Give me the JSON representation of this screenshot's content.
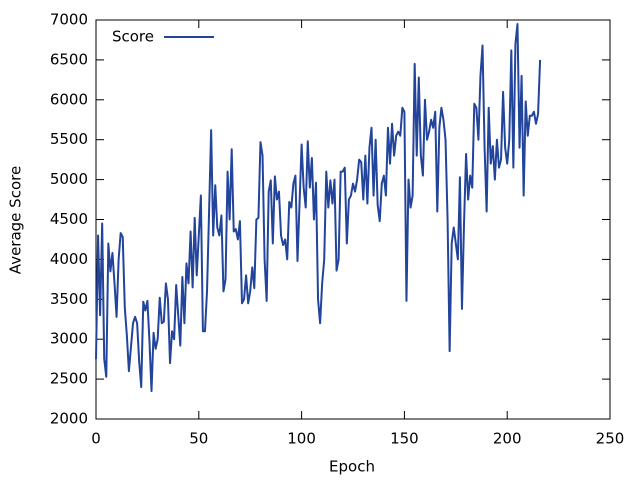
{
  "chart_data": {
    "type": "line",
    "x_label": "Epoch",
    "y_label": "Average Score",
    "xlim": [
      0,
      250
    ],
    "xticks": [
      0,
      50,
      100,
      150,
      200,
      250
    ],
    "ylim": [
      2000,
      7000
    ],
    "yticks": [
      2000,
      2500,
      3000,
      3500,
      4000,
      4500,
      5000,
      5500,
      6000,
      6500,
      7000
    ],
    "legend": "top-left",
    "series": [
      {
        "name": "Score",
        "color": "#22449a",
        "x": [
          0,
          1,
          2,
          3,
          4,
          5,
          6,
          7,
          8,
          9,
          10,
          11,
          12,
          13,
          14,
          15,
          16,
          17,
          18,
          19,
          20,
          21,
          22,
          23,
          24,
          25,
          26,
          27,
          28,
          29,
          30,
          31,
          32,
          33,
          34,
          35,
          36,
          37,
          38,
          39,
          40,
          41,
          42,
          43,
          44,
          45,
          46,
          47,
          48,
          49,
          50,
          51,
          52,
          53,
          54,
          55,
          56,
          57,
          58,
          59,
          60,
          61,
          62,
          63,
          64,
          65,
          66,
          67,
          68,
          69,
          70,
          71,
          72,
          73,
          74,
          75,
          76,
          77,
          78,
          79,
          80,
          81,
          82,
          83,
          84,
          85,
          86,
          87,
          88,
          89,
          90,
          91,
          92,
          93,
          94,
          95,
          96,
          97,
          98,
          99,
          100,
          101,
          102,
          103,
          104,
          105,
          106,
          107,
          108,
          109,
          110,
          111,
          112,
          113,
          114,
          115,
          116,
          117,
          118,
          119,
          120,
          121,
          122,
          123,
          124,
          125,
          126,
          127,
          128,
          129,
          130,
          131,
          132,
          133,
          134,
          135,
          136,
          137,
          138,
          139,
          140,
          141,
          142,
          143,
          144,
          145,
          146,
          147,
          148,
          149,
          150,
          151,
          152,
          153,
          154,
          155,
          156,
          157,
          158,
          159,
          160,
          161,
          162,
          163,
          164,
          165,
          166,
          167,
          168,
          169,
          170,
          171,
          172,
          173,
          174,
          175,
          176,
          177,
          178,
          179,
          180,
          181,
          182,
          183,
          184,
          185,
          186,
          187,
          188,
          189,
          190,
          191,
          192,
          193,
          194,
          195,
          196,
          197,
          198,
          199,
          200,
          201,
          202,
          203,
          204,
          205,
          206,
          207,
          208,
          209,
          210,
          211,
          212,
          213,
          214,
          215,
          216
        ],
        "values": [
          2750,
          4300,
          3300,
          4450,
          2750,
          2530,
          4200,
          3850,
          4080,
          3700,
          3280,
          4000,
          4330,
          4280,
          3400,
          3050,
          2600,
          2900,
          3200,
          3280,
          3200,
          2720,
          2400,
          3470,
          3360,
          3480,
          2980,
          2350,
          3080,
          2880,
          3000,
          3520,
          3200,
          3220,
          3700,
          3500,
          2700,
          3100,
          3000,
          3680,
          3300,
          2920,
          3780,
          3200,
          3950,
          3700,
          4350,
          3650,
          4520,
          3800,
          4300,
          4800,
          3100,
          3100,
          3600,
          4600,
          5620,
          4300,
          4930,
          4400,
          4300,
          4550,
          3600,
          3750,
          5100,
          4500,
          5380,
          4350,
          4380,
          4250,
          4480,
          3450,
          3500,
          3800,
          3450,
          3600,
          3900,
          3640,
          4500,
          4520,
          5470,
          5300,
          4000,
          3480,
          4850,
          4990,
          4200,
          5040,
          4750,
          4850,
          4300,
          4180,
          4250,
          4000,
          4720,
          4650,
          4950,
          5050,
          3980,
          4700,
          5440,
          4900,
          4650,
          5480,
          4900,
          5270,
          4500,
          4960,
          3500,
          3200,
          3700,
          4000,
          5100,
          4650,
          4990,
          4700,
          5000,
          3860,
          4000,
          5100,
          5100,
          5150,
          4200,
          4750,
          4800,
          4950,
          4850,
          5000,
          5250,
          5220,
          4750,
          5300,
          4700,
          5400,
          5650,
          4800,
          5500,
          4680,
          4480,
          4950,
          5050,
          4800,
          5650,
          5200,
          5700,
          5300,
          5550,
          5600,
          5550,
          5900,
          5850,
          3480,
          5000,
          4650,
          4800,
          6450,
          5300,
          6280,
          5300,
          5050,
          6000,
          5500,
          5600,
          5750,
          5650,
          5850,
          4600,
          5650,
          5900,
          5750,
          5500,
          4500,
          2850,
          4200,
          4400,
          4200,
          4000,
          5030,
          3380,
          4450,
          5320,
          4750,
          5050,
          4900,
          5950,
          5900,
          5500,
          6300,
          6680,
          5400,
          4600,
          5900,
          5200,
          5420,
          5000,
          5500,
          5150,
          5250,
          6100,
          5400,
          5200,
          5500,
          6620,
          5150,
          6700,
          6950,
          5400,
          6300,
          4800,
          5980,
          5550,
          5800,
          5800,
          5850,
          5700,
          5820,
          6500
        ]
      }
    ]
  }
}
